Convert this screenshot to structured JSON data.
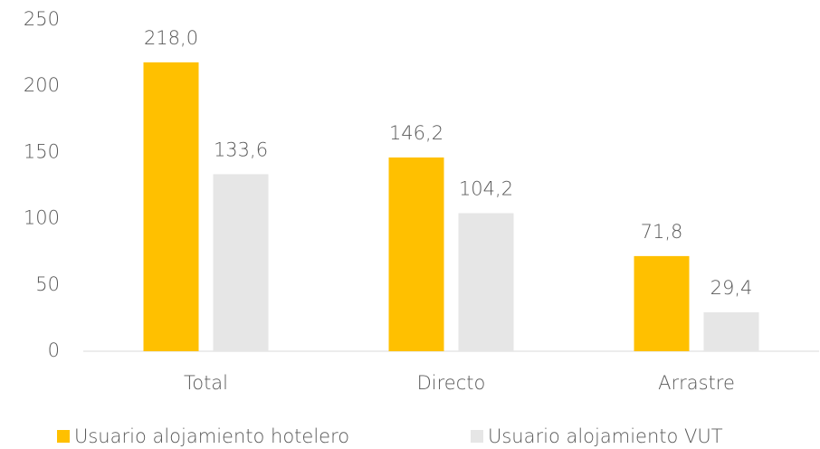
{
  "chart_data": {
    "type": "bar",
    "categories": [
      "Total",
      "Directo",
      "Arrastre"
    ],
    "series": [
      {
        "name": "Usuario alojamiento hotelero",
        "color": "#ffc000",
        "values": [
          218.0,
          146.2,
          71.8
        ],
        "value_labels": [
          "218,0",
          "146,2",
          "71,8"
        ]
      },
      {
        "name": "Usuario alojamiento VUT",
        "color": "#e6e6e6",
        "values": [
          133.6,
          104.2,
          29.4
        ],
        "value_labels": [
          "133,6",
          "104,2",
          "29,4"
        ]
      }
    ],
    "ylim": [
      0,
      250
    ],
    "yticks": [
      0,
      50,
      100,
      150,
      200,
      250
    ],
    "grid": false,
    "legend": "bottom"
  }
}
